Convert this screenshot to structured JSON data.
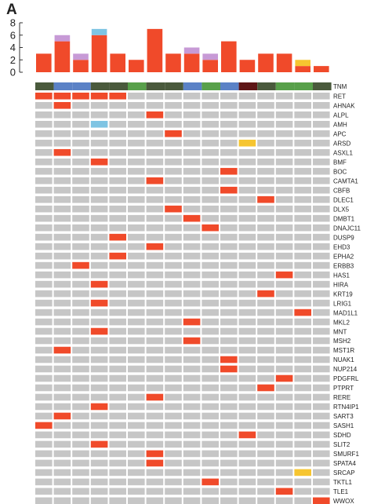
{
  "panel_label": "A",
  "chart_data": {
    "type": "heatmap",
    "title": "",
    "samples": 16,
    "top_bar": {
      "type": "bar",
      "ylim": [
        0,
        8
      ],
      "yticks": [
        0,
        2,
        4,
        6,
        8
      ],
      "series": [
        {
          "key": "red",
          "color": "#f04a2a",
          "values": [
            3,
            5,
            2,
            6,
            3,
            2,
            7,
            3,
            3,
            2,
            5,
            2,
            3,
            3,
            1,
            1
          ]
        },
        {
          "key": "purple",
          "color": "#c79ad6",
          "values": [
            0,
            1,
            1,
            0,
            0,
            0,
            0,
            0,
            1,
            1,
            0,
            0,
            0,
            0,
            0,
            0
          ]
        },
        {
          "key": "yellow",
          "color": "#f6c530",
          "values": [
            0,
            0,
            0,
            0,
            0,
            0,
            0,
            0,
            0,
            0,
            0,
            0,
            0,
            0,
            1,
            0
          ]
        },
        {
          "key": "blue",
          "color": "#7ec4e3",
          "values": [
            0,
            0,
            0,
            1,
            0,
            0,
            0,
            0,
            0,
            0,
            0,
            0,
            0,
            0,
            0,
            0
          ]
        }
      ]
    },
    "tnm_row": {
      "label": "TNM",
      "colors": [
        "#4a5a3c",
        "#5b82c6",
        "#5b82c6",
        "#4a5a3c",
        "#4a5a3c",
        "#58a04a",
        "#4a5a3c",
        "#4a5a3c",
        "#5b82c6",
        "#58a04a",
        "#5b82c6",
        "#5e1616",
        "#4a5a3c",
        "#58a04a",
        "#58a04a",
        "#4a5a3c"
      ]
    },
    "colors": {
      "0": "#c6c6c6",
      "1": "#f04a2a",
      "2": "#7ec4e3",
      "3": "#f6c530"
    },
    "genes": [
      {
        "name": "RET",
        "cells": [
          1,
          1,
          1,
          1,
          1,
          0,
          0,
          0,
          0,
          0,
          0,
          0,
          0,
          0,
          0,
          0
        ]
      },
      {
        "name": "AHNAK",
        "cells": [
          0,
          1,
          0,
          0,
          0,
          0,
          0,
          0,
          0,
          0,
          0,
          0,
          0,
          0,
          0,
          0
        ]
      },
      {
        "name": "ALPL",
        "cells": [
          0,
          0,
          0,
          0,
          0,
          0,
          1,
          0,
          0,
          0,
          0,
          0,
          0,
          0,
          0,
          0
        ]
      },
      {
        "name": "AMH",
        "cells": [
          0,
          0,
          0,
          2,
          0,
          0,
          0,
          0,
          0,
          0,
          0,
          0,
          0,
          0,
          0,
          0
        ]
      },
      {
        "name": "APC",
        "cells": [
          0,
          0,
          0,
          0,
          0,
          0,
          0,
          1,
          0,
          0,
          0,
          0,
          0,
          0,
          0,
          0
        ]
      },
      {
        "name": "ARSD",
        "cells": [
          0,
          0,
          0,
          0,
          0,
          0,
          0,
          0,
          0,
          0,
          0,
          3,
          0,
          0,
          0,
          0
        ]
      },
      {
        "name": "ASXL1",
        "cells": [
          0,
          1,
          0,
          0,
          0,
          0,
          0,
          0,
          0,
          0,
          0,
          0,
          0,
          0,
          0,
          0
        ]
      },
      {
        "name": "BMF",
        "cells": [
          0,
          0,
          0,
          1,
          0,
          0,
          0,
          0,
          0,
          0,
          0,
          0,
          0,
          0,
          0,
          0
        ]
      },
      {
        "name": "BOC",
        "cells": [
          0,
          0,
          0,
          0,
          0,
          0,
          0,
          0,
          0,
          0,
          1,
          0,
          0,
          0,
          0,
          0
        ]
      },
      {
        "name": "CAMTA1",
        "cells": [
          0,
          0,
          0,
          0,
          0,
          0,
          1,
          0,
          0,
          0,
          0,
          0,
          0,
          0,
          0,
          0
        ]
      },
      {
        "name": "CBFB",
        "cells": [
          0,
          0,
          0,
          0,
          0,
          0,
          0,
          0,
          0,
          0,
          1,
          0,
          0,
          0,
          0,
          0
        ]
      },
      {
        "name": "DLEC1",
        "cells": [
          0,
          0,
          0,
          0,
          0,
          0,
          0,
          0,
          0,
          0,
          0,
          0,
          1,
          0,
          0,
          0
        ]
      },
      {
        "name": "DLX5",
        "cells": [
          0,
          0,
          0,
          0,
          0,
          0,
          0,
          1,
          0,
          0,
          0,
          0,
          0,
          0,
          0,
          0
        ]
      },
      {
        "name": "DMBT1",
        "cells": [
          0,
          0,
          0,
          0,
          0,
          0,
          0,
          0,
          1,
          0,
          0,
          0,
          0,
          0,
          0,
          0
        ]
      },
      {
        "name": "DNAJC11",
        "cells": [
          0,
          0,
          0,
          0,
          0,
          0,
          0,
          0,
          0,
          1,
          0,
          0,
          0,
          0,
          0,
          0
        ]
      },
      {
        "name": "DUSP9",
        "cells": [
          0,
          0,
          0,
          0,
          1,
          0,
          0,
          0,
          0,
          0,
          0,
          0,
          0,
          0,
          0,
          0
        ]
      },
      {
        "name": "EHD3",
        "cells": [
          0,
          0,
          0,
          0,
          0,
          0,
          1,
          0,
          0,
          0,
          0,
          0,
          0,
          0,
          0,
          0
        ]
      },
      {
        "name": "EPHA2",
        "cells": [
          0,
          0,
          0,
          0,
          1,
          0,
          0,
          0,
          0,
          0,
          0,
          0,
          0,
          0,
          0,
          0
        ]
      },
      {
        "name": "ERBB3",
        "cells": [
          0,
          0,
          1,
          0,
          0,
          0,
          0,
          0,
          0,
          0,
          0,
          0,
          0,
          0,
          0,
          0
        ]
      },
      {
        "name": "HAS1",
        "cells": [
          0,
          0,
          0,
          0,
          0,
          0,
          0,
          0,
          0,
          0,
          0,
          0,
          0,
          1,
          0,
          0
        ]
      },
      {
        "name": "HIRA",
        "cells": [
          0,
          0,
          0,
          1,
          0,
          0,
          0,
          0,
          0,
          0,
          0,
          0,
          0,
          0,
          0,
          0
        ]
      },
      {
        "name": "KRT19",
        "cells": [
          0,
          0,
          0,
          0,
          0,
          0,
          0,
          0,
          0,
          0,
          0,
          0,
          1,
          0,
          0,
          0
        ]
      },
      {
        "name": "LRIG1",
        "cells": [
          0,
          0,
          0,
          1,
          0,
          0,
          0,
          0,
          0,
          0,
          0,
          0,
          0,
          0,
          0,
          0
        ]
      },
      {
        "name": "MAD1L1",
        "cells": [
          0,
          0,
          0,
          0,
          0,
          0,
          0,
          0,
          0,
          0,
          0,
          0,
          0,
          0,
          1,
          0
        ]
      },
      {
        "name": "MKL2",
        "cells": [
          0,
          0,
          0,
          0,
          0,
          0,
          0,
          0,
          1,
          0,
          0,
          0,
          0,
          0,
          0,
          0
        ]
      },
      {
        "name": "MNT",
        "cells": [
          0,
          0,
          0,
          1,
          0,
          0,
          0,
          0,
          0,
          0,
          0,
          0,
          0,
          0,
          0,
          0
        ]
      },
      {
        "name": "MSH2",
        "cells": [
          0,
          0,
          0,
          0,
          0,
          0,
          0,
          0,
          1,
          0,
          0,
          0,
          0,
          0,
          0,
          0
        ]
      },
      {
        "name": "MST1R",
        "cells": [
          0,
          1,
          0,
          0,
          0,
          0,
          0,
          0,
          0,
          0,
          0,
          0,
          0,
          0,
          0,
          0
        ]
      },
      {
        "name": "NUAK1",
        "cells": [
          0,
          0,
          0,
          0,
          0,
          0,
          0,
          0,
          0,
          0,
          1,
          0,
          0,
          0,
          0,
          0
        ]
      },
      {
        "name": "NUP214",
        "cells": [
          0,
          0,
          0,
          0,
          0,
          0,
          0,
          0,
          0,
          0,
          1,
          0,
          0,
          0,
          0,
          0
        ]
      },
      {
        "name": "PDGFRL",
        "cells": [
          0,
          0,
          0,
          0,
          0,
          0,
          0,
          0,
          0,
          0,
          0,
          0,
          0,
          1,
          0,
          0
        ]
      },
      {
        "name": "PTPRT",
        "cells": [
          0,
          0,
          0,
          0,
          0,
          0,
          0,
          0,
          0,
          0,
          0,
          0,
          1,
          0,
          0,
          0
        ]
      },
      {
        "name": "RERE",
        "cells": [
          0,
          0,
          0,
          0,
          0,
          0,
          1,
          0,
          0,
          0,
          0,
          0,
          0,
          0,
          0,
          0
        ]
      },
      {
        "name": "RTN4IP1",
        "cells": [
          0,
          0,
          0,
          1,
          0,
          0,
          0,
          0,
          0,
          0,
          0,
          0,
          0,
          0,
          0,
          0
        ]
      },
      {
        "name": "SART3",
        "cells": [
          0,
          1,
          0,
          0,
          0,
          0,
          0,
          0,
          0,
          0,
          0,
          0,
          0,
          0,
          0,
          0
        ]
      },
      {
        "name": "SASH1",
        "cells": [
          1,
          0,
          0,
          0,
          0,
          0,
          0,
          0,
          0,
          0,
          0,
          0,
          0,
          0,
          0,
          0
        ]
      },
      {
        "name": "SDHD",
        "cells": [
          0,
          0,
          0,
          0,
          0,
          0,
          0,
          0,
          0,
          0,
          0,
          1,
          0,
          0,
          0,
          0
        ]
      },
      {
        "name": "SLIT2",
        "cells": [
          0,
          0,
          0,
          1,
          0,
          0,
          0,
          0,
          0,
          0,
          0,
          0,
          0,
          0,
          0,
          0
        ]
      },
      {
        "name": "SMURF1",
        "cells": [
          0,
          0,
          0,
          0,
          0,
          0,
          1,
          0,
          0,
          0,
          0,
          0,
          0,
          0,
          0,
          0
        ]
      },
      {
        "name": "SPATA4",
        "cells": [
          0,
          0,
          0,
          0,
          0,
          0,
          1,
          0,
          0,
          0,
          0,
          0,
          0,
          0,
          0,
          0
        ]
      },
      {
        "name": "SRCAP",
        "cells": [
          0,
          0,
          0,
          0,
          0,
          0,
          0,
          0,
          0,
          0,
          0,
          0,
          0,
          0,
          3,
          0
        ]
      },
      {
        "name": "TKTL1",
        "cells": [
          0,
          0,
          0,
          0,
          0,
          0,
          0,
          0,
          0,
          1,
          0,
          0,
          0,
          0,
          0,
          0
        ]
      },
      {
        "name": "TLE1",
        "cells": [
          0,
          0,
          0,
          0,
          0,
          0,
          0,
          0,
          0,
          0,
          0,
          0,
          0,
          1,
          0,
          0
        ]
      },
      {
        "name": "WWOX",
        "cells": [
          0,
          0,
          0,
          0,
          0,
          0,
          0,
          0,
          0,
          0,
          0,
          0,
          0,
          0,
          0,
          1
        ]
      }
    ]
  }
}
